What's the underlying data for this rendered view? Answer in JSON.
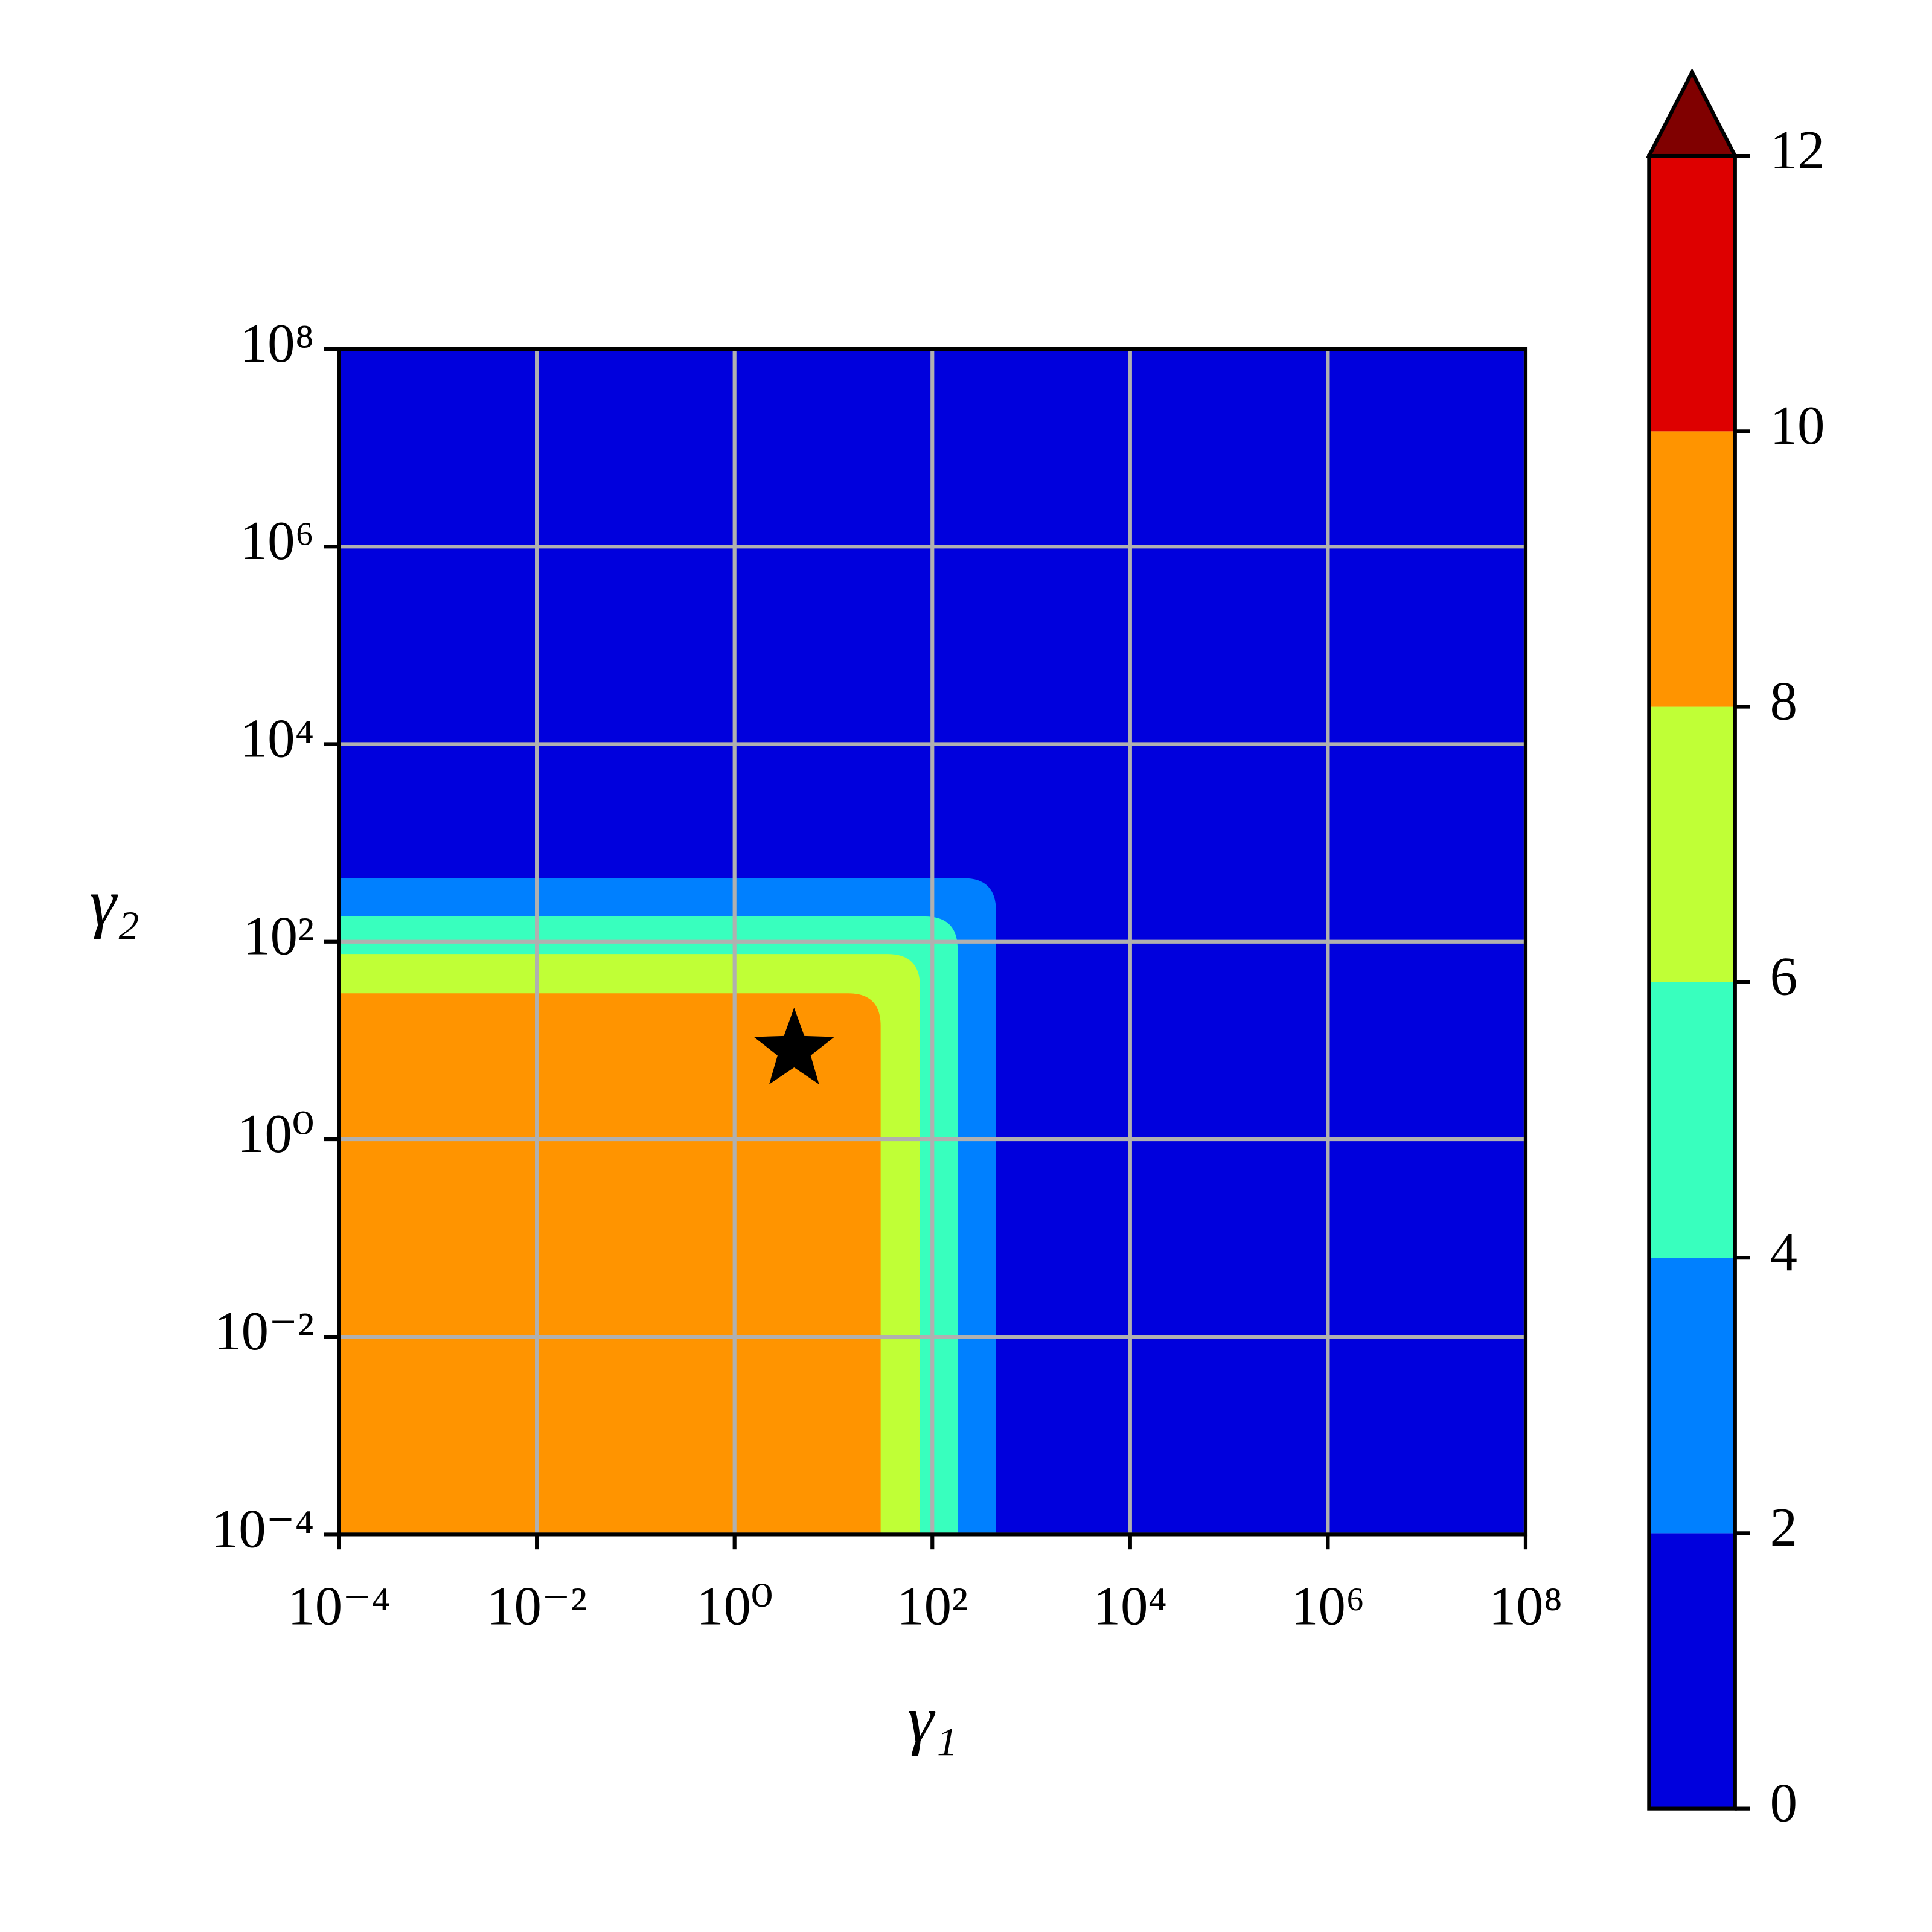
{
  "chart_data": {
    "type": "contour",
    "xlabel": "γ₁",
    "ylabel": "γ₂",
    "xscale": "log",
    "yscale": "log",
    "xlim": [
      0.0001,
      100000000
    ],
    "ylim": [
      0.0001,
      100000000
    ],
    "xticks": [
      {
        "value": 0.0001,
        "label": "10⁻⁴"
      },
      {
        "value": 0.01,
        "label": "10⁻²"
      },
      {
        "value": 1,
        "label": "10⁰"
      },
      {
        "value": 100,
        "label": "10²"
      },
      {
        "value": 10000,
        "label": "10⁴"
      },
      {
        "value": 1000000,
        "label": "10⁶"
      },
      {
        "value": 100000000,
        "label": "10⁸"
      }
    ],
    "yticks": [
      {
        "value": 0.0001,
        "label": "10⁻⁴"
      },
      {
        "value": 0.01,
        "label": "10⁻²"
      },
      {
        "value": 1,
        "label": "10⁰"
      },
      {
        "value": 100,
        "label": "10²"
      },
      {
        "value": 10000,
        "label": "10⁴"
      },
      {
        "value": 1000000,
        "label": "10⁶"
      },
      {
        "value": 100000000,
        "label": "10⁸"
      }
    ],
    "grid": true,
    "levels": [
      0,
      2,
      4,
      6,
      8,
      10,
      12
    ],
    "colors": [
      "#0000dd",
      "#0080ff",
      "#38ffbe",
      "#c0ff36",
      "#ff9400",
      "#de0000"
    ],
    "extend_color": "#800000",
    "boundaries": [
      {
        "level": 2,
        "x": 440,
        "y": 440
      },
      {
        "level": 4,
        "x": 180,
        "y": 180
      },
      {
        "level": 6,
        "x": 75,
        "y": 75
      },
      {
        "level": 8,
        "x": 30,
        "y": 30
      }
    ],
    "marker": {
      "x": 4,
      "y": 8
    }
  }
}
